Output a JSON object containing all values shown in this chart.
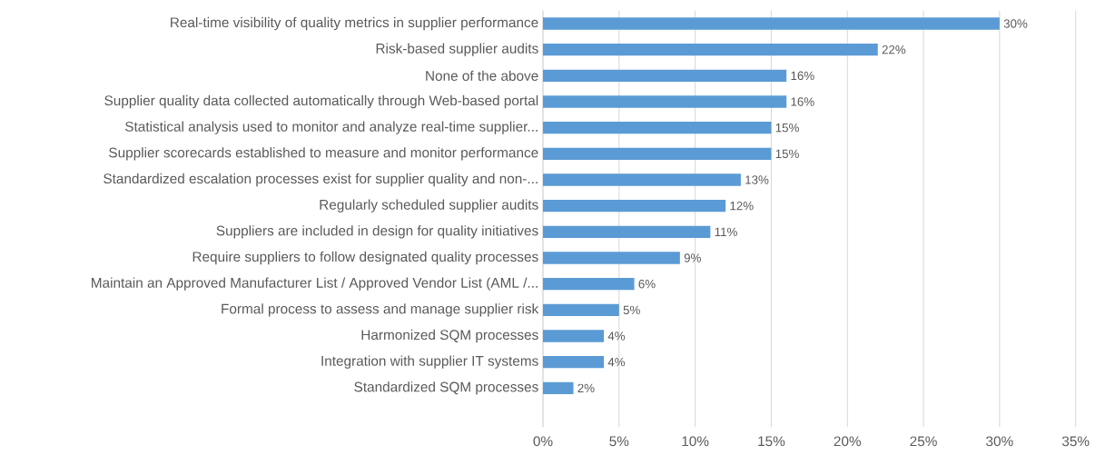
{
  "chart_data": {
    "type": "bar",
    "orientation": "horizontal",
    "categories": [
      "Real-time visibility of quality metrics in supplier performance",
      "Risk-based supplier audits",
      "None of the above",
      "Supplier quality data collected automatically through Web-based portal",
      "Statistical analysis used to monitor and analyze real-time supplier...",
      "Supplier scorecards established to measure and monitor performance",
      "Standardized escalation processes exist for supplier quality and non-...",
      "Regularly scheduled supplier audits",
      "Suppliers are included in design for quality initiatives",
      "Require suppliers to follow designated quality processes",
      "Maintain an Approved Manufacturer List / Approved Vendor List (AML /...",
      "Formal process to assess and manage supplier risk",
      "Harmonized SQM processes",
      "Integration with supplier IT systems",
      "Standardized SQM processes"
    ],
    "values": [
      30,
      22,
      16,
      16,
      15,
      15,
      13,
      12,
      11,
      9,
      6,
      5,
      4,
      4,
      2
    ],
    "value_labels": [
      "30%",
      "22%",
      "16%",
      "16%",
      "15%",
      "15%",
      "13%",
      "12%",
      "11%",
      "9%",
      "6%",
      "5%",
      "4%",
      "4%",
      "2%"
    ],
    "color": "#5b9bd5",
    "xlim": [
      0,
      35
    ],
    "xticks": [
      {
        "value": 0,
        "label": "0%"
      },
      {
        "value": 5,
        "label": "5%"
      },
      {
        "value": 10,
        "label": "10%"
      },
      {
        "value": 15,
        "label": "15%"
      },
      {
        "value": 20,
        "label": "20%"
      },
      {
        "value": 25,
        "label": "25%"
      },
      {
        "value": 30,
        "label": "30%"
      },
      {
        "value": 35,
        "label": "35%"
      }
    ],
    "grid": "x"
  }
}
